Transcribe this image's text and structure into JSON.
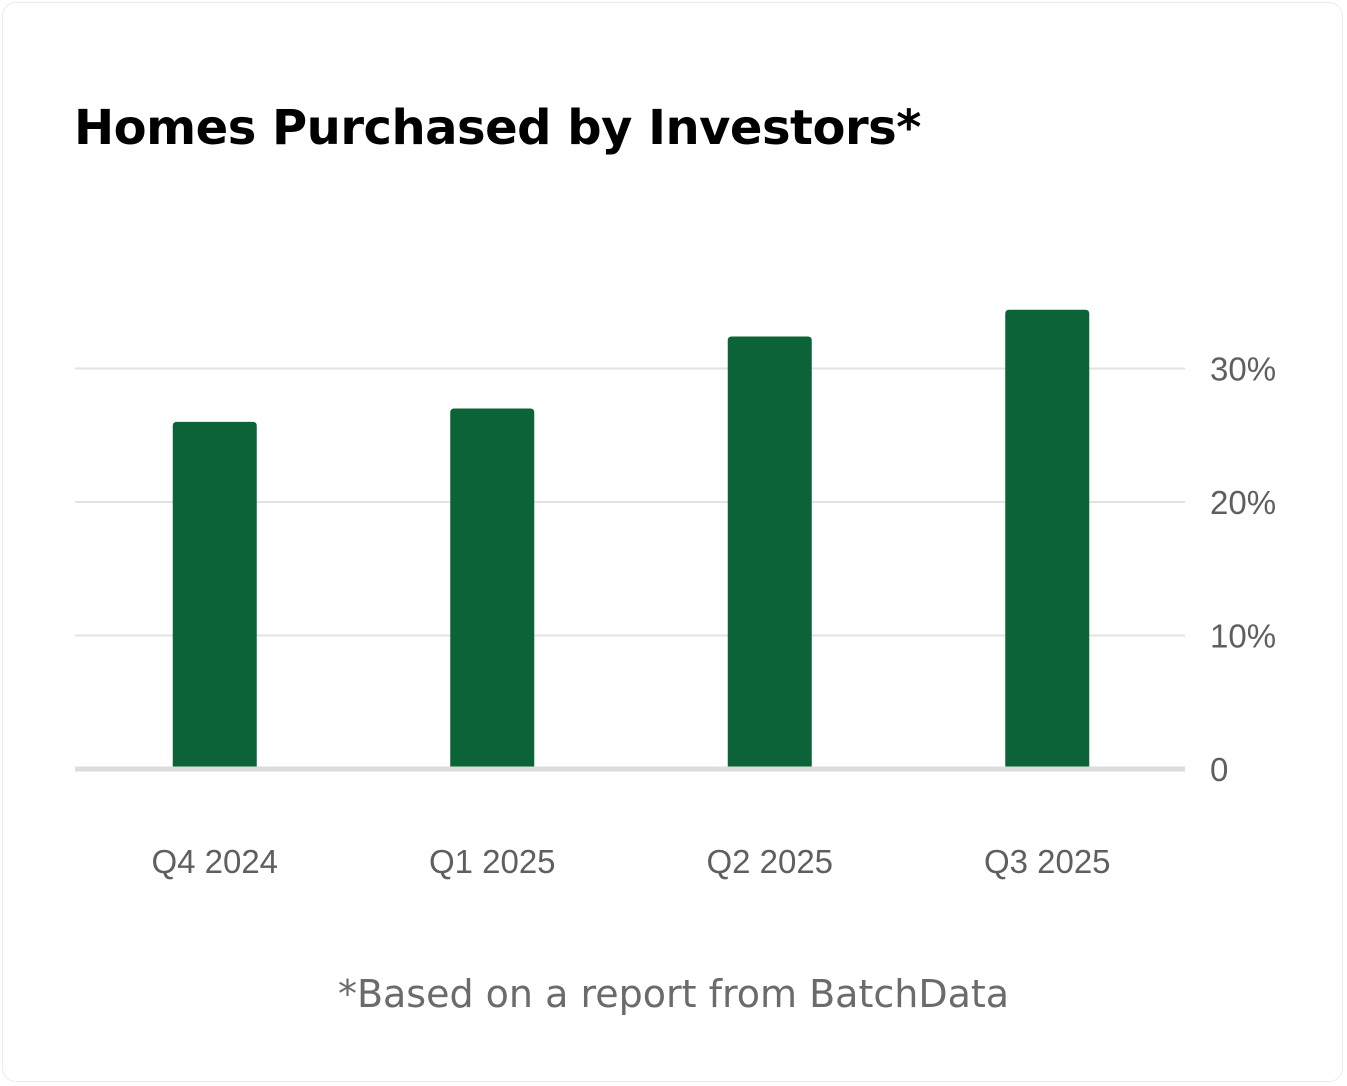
{
  "chart_data": {
    "type": "bar",
    "title": "Homes Purchased by Investors*",
    "categories": [
      "Q4 2024",
      "Q1 2025",
      "Q2 2025",
      "Q3 2025"
    ],
    "values": [
      26,
      27,
      32.4,
      34.4
    ],
    "value_unit": "%",
    "ylim": [
      0,
      30
    ],
    "y_ticks": [
      {
        "value": 0,
        "label": "0"
      },
      {
        "value": 10,
        "label": "10%"
      },
      {
        "value": 20,
        "label": "20%"
      },
      {
        "value": 30,
        "label": "30%"
      }
    ],
    "y_axis_side": "right",
    "grid": true,
    "legend": "none",
    "bar_color": "#0c6337",
    "xlabel": "",
    "ylabel": ""
  },
  "footnote": "*Based on a report from BatchData"
}
